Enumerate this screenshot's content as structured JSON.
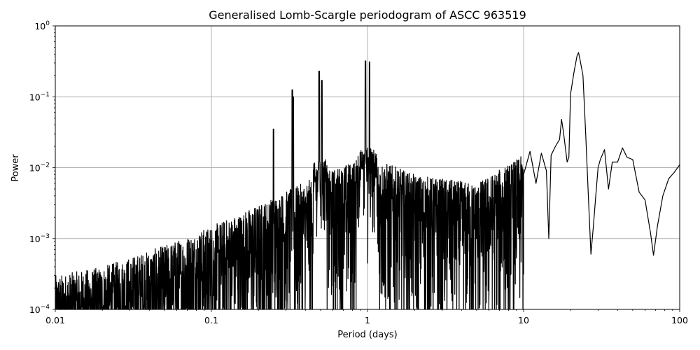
{
  "chart_data": {
    "type": "line",
    "title": "Generalised Lomb-Scargle periodogram of ASCC 963519",
    "xlabel": "Period (days)",
    "ylabel": "Power",
    "xscale": "log",
    "yscale": "log",
    "xlim": [
      0.01,
      100
    ],
    "ylim": [
      0.0001,
      1
    ],
    "grid": true,
    "legend": null,
    "x_ticks": [
      "0.01",
      "0.1",
      "1",
      "10",
      "100"
    ],
    "y_ticks": [
      {
        "base": "10",
        "exp": "0"
      },
      {
        "base": "10",
        "exp": "−1"
      },
      {
        "base": "10",
        "exp": "−2"
      },
      {
        "base": "10",
        "exp": "−3"
      },
      {
        "base": "10",
        "exp": "−4"
      }
    ],
    "line_color": "#000000",
    "grid_color": "#b0b0b0",
    "notable_peaks": [
      {
        "period": 0.25,
        "power": 0.035
      },
      {
        "period": 0.33,
        "power": 0.125
      },
      {
        "period": 0.335,
        "power": 0.1
      },
      {
        "period": 0.49,
        "power": 0.23
      },
      {
        "period": 0.51,
        "power": 0.17
      },
      {
        "period": 0.97,
        "power": 0.32
      },
      {
        "period": 1.03,
        "power": 0.31
      },
      {
        "period": 17.5,
        "power": 0.048
      },
      {
        "period": 22.5,
        "power": 0.42
      },
      {
        "period": 30.5,
        "power": 0.018
      },
      {
        "period": 43.0,
        "power": 0.019
      },
      {
        "period": 100.0,
        "power": 0.011
      }
    ],
    "notable_dips": [
      {
        "period": 9.5,
        "power": 0.0001
      },
      {
        "period": 14.5,
        "power": 0.001
      },
      {
        "period": 27.0,
        "power": 0.0006
      },
      {
        "period": 68.0,
        "power": 0.00058
      }
    ],
    "envelope": {
      "description": "dense noise floor rising from ~2e-4 at 0.01 d to ~5e-3 near 1 d",
      "x": [
        0.01,
        0.02,
        0.05,
        0.1,
        0.2,
        0.5,
        1.0,
        2.0,
        5.0,
        10.0
      ],
      "upper": [
        0.0003,
        0.0004,
        0.0008,
        0.0015,
        0.003,
        0.008,
        0.015,
        0.008,
        0.006,
        0.015
      ]
    },
    "smooth_segment": {
      "x": [
        10,
        11,
        12,
        13,
        14,
        14.5,
        15,
        16,
        17,
        17.5,
        18,
        19,
        19.5,
        20,
        21,
        22,
        22.5,
        23,
        24,
        25,
        26,
        27,
        28,
        29,
        30,
        31,
        33,
        35,
        37,
        40,
        43,
        46,
        50,
        55,
        60,
        65,
        68,
        72,
        78,
        85,
        92,
        100
      ],
      "y": [
        0.008,
        0.017,
        0.006,
        0.016,
        0.009,
        0.001,
        0.015,
        0.02,
        0.025,
        0.048,
        0.032,
        0.012,
        0.014,
        0.11,
        0.22,
        0.38,
        0.42,
        0.33,
        0.2,
        0.03,
        0.004,
        0.0006,
        0.0015,
        0.004,
        0.01,
        0.013,
        0.018,
        0.005,
        0.012,
        0.012,
        0.019,
        0.014,
        0.013,
        0.0045,
        0.0035,
        0.0012,
        0.00058,
        0.0015,
        0.004,
        0.007,
        0.0085,
        0.011
      ]
    }
  }
}
